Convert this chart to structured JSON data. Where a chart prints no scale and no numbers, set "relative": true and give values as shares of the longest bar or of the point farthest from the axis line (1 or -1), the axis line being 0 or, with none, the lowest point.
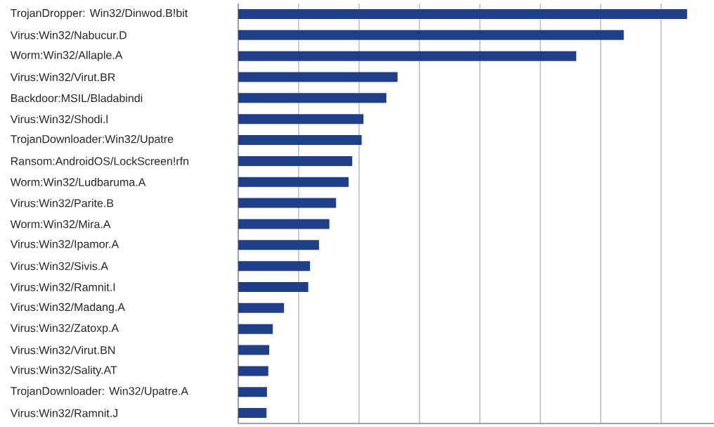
{
  "chart_data": {
    "type": "bar",
    "orientation": "horizontal",
    "relative": true,
    "grid": "x",
    "color": "#1f3f8a",
    "categories": [
      "TrojanDropper: Win32/Dinwod.B!bit",
      "Virus:Win32/Nabucur.D",
      "Worm:Win32/Allaple.A",
      "Virus:Win32/Virut.BR",
      "Backdoor:MSIL/Bladabindi",
      "Virus:Win32/Shodi.l",
      "TrojanDownloader:Win32/Upatre",
      "Ransom:AndroidOS/LockScreen!rfn",
      "Worm:Win32/Ludbaruma.A",
      "Virus:Win32/Parite.B",
      "Worm:Win32/Mira.A",
      "Virus:Win32/Ipamor.A",
      "Virus:Win32/Sivis.A",
      "Virus:Win32/Ramnit.I",
      "Virus:Win32/Madang.A",
      "Virus:Win32/Zatoxp.A",
      "Virus:Win32/Virut.BN",
      "Virus:Win32/Sality.AT",
      "TrojanDownloader: Win32/Upatre.A",
      "Virus:Win32/Ramnit.J"
    ],
    "values": [
      1,
      0.859,
      0.753,
      0.355,
      0.33,
      0.279,
      0.275,
      0.254,
      0.246,
      0.218,
      0.203,
      0.18,
      0.16,
      0.156,
      0.102,
      0.077,
      0.069,
      0.067,
      0.064,
      0.063
    ]
  }
}
